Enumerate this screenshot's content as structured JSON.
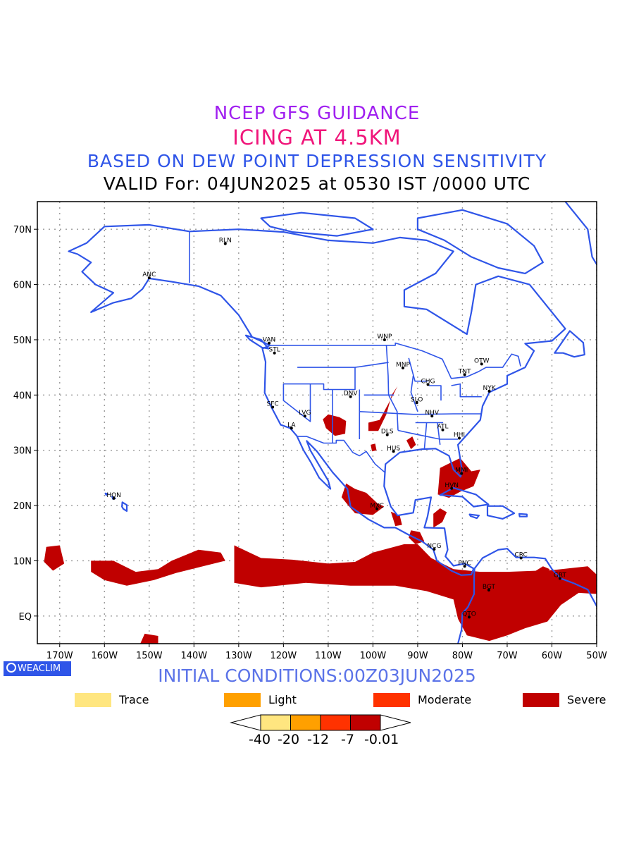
{
  "title": {
    "line1": "NCEP GFS GUIDANCE",
    "line2": "ICING AT 4.5KM",
    "line3": "BASED ON DEW POINT DEPRESSION SENSITIVITY",
    "line4": "VALID For: 04JUN2025 at 0530 IST /0000 UTC"
  },
  "map": {
    "lon_range": [
      -175,
      -50
    ],
    "lat_range": [
      -5,
      75
    ],
    "lat_ticks": [
      "EQ",
      "10N",
      "20N",
      "30N",
      "40N",
      "50N",
      "60N",
      "70N"
    ],
    "lon_ticks": [
      "170W",
      "160W",
      "150W",
      "140W",
      "130W",
      "120W",
      "110W",
      "100W",
      "90W",
      "80W",
      "70W",
      "60W",
      "50W"
    ],
    "coast_color": "#2f55e8",
    "icing_color": "#c00000",
    "stations": [
      {
        "code": "ANC",
        "lon": -150.0,
        "lat": 61.2
      },
      {
        "code": "RLN",
        "lon": -133.0,
        "lat": 67.4
      },
      {
        "code": "VAN",
        "lon": -123.2,
        "lat": 49.4
      },
      {
        "code": "STL",
        "lon": -122.0,
        "lat": 47.6
      },
      {
        "code": "WNP",
        "lon": -97.4,
        "lat": 50.0
      },
      {
        "code": "OTW",
        "lon": -75.7,
        "lat": 45.6
      },
      {
        "code": "MNP",
        "lon": -93.3,
        "lat": 44.9
      },
      {
        "code": "TNT",
        "lon": -79.5,
        "lat": 43.7
      },
      {
        "code": "CHG",
        "lon": -87.7,
        "lat": 41.9
      },
      {
        "code": "NYK",
        "lon": -74.0,
        "lat": 40.7
      },
      {
        "code": "DNV",
        "lon": -105.0,
        "lat": 39.7
      },
      {
        "code": "SFC",
        "lon": -122.4,
        "lat": 37.8
      },
      {
        "code": "LVG",
        "lon": -115.2,
        "lat": 36.2
      },
      {
        "code": "SLO",
        "lon": -90.2,
        "lat": 38.6
      },
      {
        "code": "NHV",
        "lon": -86.8,
        "lat": 36.2
      },
      {
        "code": "LA",
        "lon": -118.2,
        "lat": 34.0
      },
      {
        "code": "ATL",
        "lon": -84.4,
        "lat": 33.7
      },
      {
        "code": "DLS",
        "lon": -96.8,
        "lat": 32.8
      },
      {
        "code": "HHI",
        "lon": -80.7,
        "lat": 32.2
      },
      {
        "code": "HUS",
        "lon": -95.4,
        "lat": 29.8
      },
      {
        "code": "MMI",
        "lon": -80.2,
        "lat": 25.8
      },
      {
        "code": "HVN",
        "lon": -82.4,
        "lat": 23.1
      },
      {
        "code": "HON",
        "lon": -157.9,
        "lat": 21.3
      },
      {
        "code": "MXC",
        "lon": -99.1,
        "lat": 19.4
      },
      {
        "code": "NCG",
        "lon": -86.3,
        "lat": 12.1
      },
      {
        "code": "CRC",
        "lon": -66.9,
        "lat": 10.5
      },
      {
        "code": "PNC",
        "lon": -79.5,
        "lat": 9.0
      },
      {
        "code": "GRT",
        "lon": -58.2,
        "lat": 6.8
      },
      {
        "code": "BGT",
        "lon": -74.1,
        "lat": 4.7
      },
      {
        "code": "QTO",
        "lon": -78.5,
        "lat": -0.2
      }
    ]
  },
  "initial_conditions": "INITIAL CONDITIONS:00Z03JUN2025",
  "logo_text": "WEACLIM",
  "legend": [
    {
      "label": "Trace",
      "color": "#ffe680"
    },
    {
      "label": "Light",
      "color": "#ffa000"
    },
    {
      "label": "Moderate",
      "color": "#ff3200"
    },
    {
      "label": "Severe",
      "color": "#c00000"
    }
  ],
  "colorbar": {
    "labels": [
      "-40",
      "-20",
      "-12",
      "-7",
      "-0.01"
    ],
    "colors": [
      "#ffe680",
      "#ffa000",
      "#ff3200",
      "#c00000"
    ]
  }
}
